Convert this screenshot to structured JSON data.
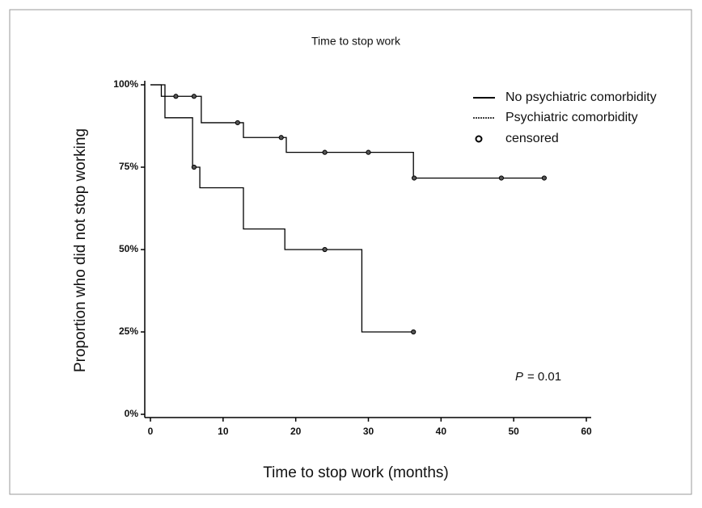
{
  "chart_data": {
    "type": "km-step",
    "title": "Time to stop work",
    "x_label": "Time to stop work (months)",
    "y_label": "Proportion who did not stop working",
    "xlim": [
      0,
      60
    ],
    "xticks": [
      0,
      10,
      20,
      30,
      40,
      50,
      60
    ],
    "ylim": [
      0,
      100
    ],
    "yticks": [
      {
        "value": 0,
        "label": "0%"
      },
      {
        "value": 25,
        "label": "25%"
      },
      {
        "value": 50,
        "label": "50%"
      },
      {
        "value": 75,
        "label": "75%"
      },
      {
        "value": 100,
        "label": "100%"
      }
    ],
    "series": [
      {
        "name": "No psychiatric comorbidity",
        "color": "#000000",
        "x": [
          0,
          1.5,
          7,
          12.8,
          18.7,
          36.2,
          54.2
        ],
        "values": [
          100,
          96.5,
          88.5,
          84,
          79.5,
          71.7,
          71.7
        ],
        "censored": {
          "x": [
            3.5,
            6,
            12,
            18,
            24,
            30,
            36.3,
            48.3,
            54.2
          ],
          "values": [
            96.5,
            96.5,
            88.5,
            84,
            79.5,
            79.5,
            71.7,
            71.7,
            71.7
          ]
        }
      },
      {
        "name": "Psychiatric comorbidity",
        "color": "#000000",
        "x": [
          0,
          2,
          5.8,
          6.8,
          12.8,
          18.5,
          29.1,
          36.2
        ],
        "values": [
          100,
          90,
          75,
          68.75,
          56.25,
          50,
          25,
          25
        ],
        "censored": {
          "x": [
            6,
            24,
            36.2
          ],
          "values": [
            75,
            50,
            25
          ]
        }
      }
    ],
    "censored_label": "censored",
    "annotation": {
      "p_symbol": "P",
      "p_text": "= 0.01"
    }
  }
}
